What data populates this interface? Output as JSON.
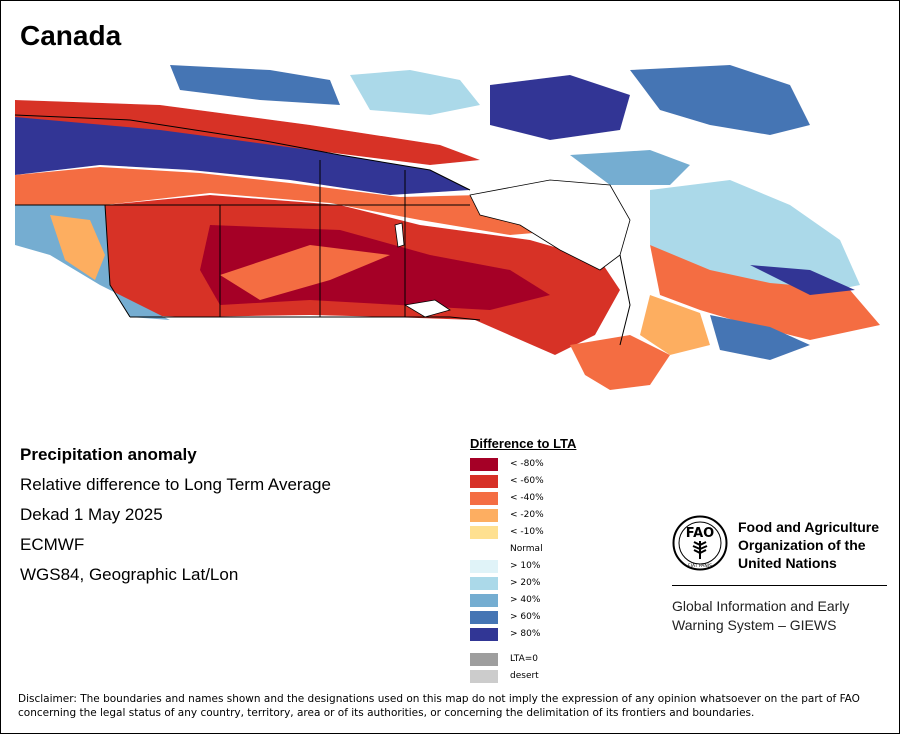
{
  "title": "Canada",
  "meta": {
    "heading": "Precipitation anomaly",
    "line1": "Relative difference to Long Term Average",
    "line2": "Dekad 1 May 2025",
    "line3": "ECMWF",
    "line4": "WGS84, Geographic Lat/Lon"
  },
  "legend": {
    "title": "Difference to LTA",
    "items": [
      {
        "label": "< -80%",
        "color": "#a50026"
      },
      {
        "label": "< -60%",
        "color": "#d73027"
      },
      {
        "label": "< -40%",
        "color": "#f46d43"
      },
      {
        "label": "< -20%",
        "color": "#fdae61"
      },
      {
        "label": "< -10%",
        "color": "#fee090"
      },
      {
        "label": "Normal",
        "color": "#ffffff"
      },
      {
        "label": "> 10%",
        "color": "#e0f3f8"
      },
      {
        "label": "> 20%",
        "color": "#abd9e9"
      },
      {
        "label": "> 40%",
        "color": "#74add1"
      },
      {
        "label": "> 60%",
        "color": "#4575b4"
      },
      {
        "label": "> 80%",
        "color": "#313695"
      },
      {
        "label": "LTA=0",
        "color": "#9e9e9e"
      },
      {
        "label": "desert",
        "color": "#cccccc"
      }
    ]
  },
  "fao": {
    "logo_letters": "FAO",
    "logo_motto": "FIAT PANIS",
    "name_line1": "Food and Agriculture",
    "name_line2": "Organization of the",
    "name_line3": "United Nations",
    "giews_line1": "Global Information and Early",
    "giews_line2": "Warning System – GIEWS"
  },
  "disclaimer": "Disclaimer: The boundaries and names shown and the designations used on this map do not imply the expression of any opinion whatsoever on the part of FAO concerning the legal status of any country, territory, area or of its authorities, or concerning the delimitation of its frontiers and boundaries."
}
